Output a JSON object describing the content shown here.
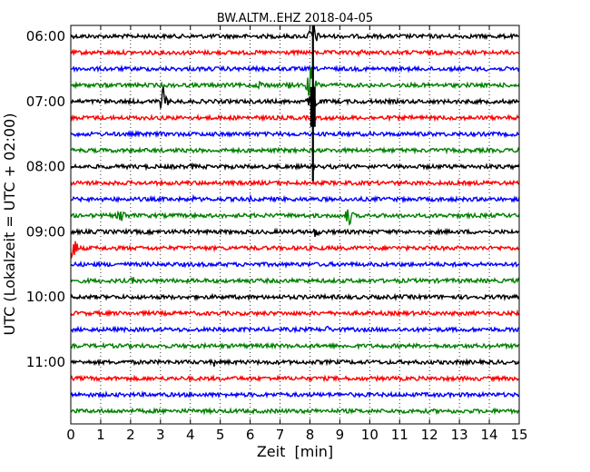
{
  "chart_data": {
    "type": "line",
    "title": "BW.ALTM..EHZ 2018-04-05",
    "xlabel": "Zeit  [min]",
    "ylabel": "UTC (Lokalzeit = UTC + 02:00)",
    "xlim": [
      0,
      15
    ],
    "x_ticks": [
      0,
      1,
      2,
      3,
      4,
      5,
      6,
      7,
      8,
      9,
      10,
      11,
      12,
      13,
      14,
      15
    ],
    "x_tick_labels": [
      "0",
      "1",
      "2",
      "3",
      "4",
      "5",
      "6",
      "7",
      "8",
      "9",
      "10",
      "11",
      "12",
      "13",
      "14",
      "15"
    ],
    "y_tick_labels": [
      {
        "row": 0,
        "label": "06:00"
      },
      {
        "row": 4,
        "label": "07:00"
      },
      {
        "row": 8,
        "label": "08:00"
      },
      {
        "row": 12,
        "label": "09:00"
      },
      {
        "row": 16,
        "label": "10:00"
      },
      {
        "row": 20,
        "label": "11:00"
      }
    ],
    "grid": "vertical dotted at each minute",
    "trace_interval_min": 15,
    "trace_colors": [
      "#000000",
      "#ff0000",
      "#0000ff",
      "#008000"
    ],
    "rows": [
      {
        "start": "06:00",
        "color": "#000000",
        "events": [
          {
            "t": 8.1,
            "amp": 20
          }
        ]
      },
      {
        "start": "06:15",
        "color": "#ff0000",
        "events": [
          {
            "t": 9.7,
            "amp": 6
          }
        ]
      },
      {
        "start": "06:30",
        "color": "#0000ff",
        "events": []
      },
      {
        "start": "06:45",
        "color": "#008000",
        "events": [
          {
            "t": 6.4,
            "amp": 10
          },
          {
            "t": 7.3,
            "amp": 5
          },
          {
            "t": 8.05,
            "amp": 28
          }
        ]
      },
      {
        "start": "07:00",
        "color": "#000000",
        "events": [
          {
            "t": 3.1,
            "amp": 18
          },
          {
            "t": 8.1,
            "amp": 20
          }
        ]
      },
      {
        "start": "07:15",
        "color": "#ff0000",
        "events": []
      },
      {
        "start": "07:30",
        "color": "#0000ff",
        "events": []
      },
      {
        "start": "07:45",
        "color": "#008000",
        "events": []
      },
      {
        "start": "08:00",
        "color": "#000000",
        "events": [
          {
            "t": 4.1,
            "amp": 5
          }
        ]
      },
      {
        "start": "08:15",
        "color": "#ff0000",
        "events": []
      },
      {
        "start": "08:30",
        "color": "#0000ff",
        "events": [
          {
            "t": 4.1,
            "amp": 4
          },
          {
            "t": 6.0,
            "amp": 4
          }
        ]
      },
      {
        "start": "08:45",
        "color": "#008000",
        "events": [
          {
            "t": 1.7,
            "amp": 12
          },
          {
            "t": 9.3,
            "amp": 14
          }
        ]
      },
      {
        "start": "09:00",
        "color": "#000000",
        "events": [
          {
            "t": 8.2,
            "amp": 8
          }
        ]
      },
      {
        "start": "09:15",
        "color": "#ff0000",
        "events": [
          {
            "t": 0.1,
            "amp": 18
          },
          {
            "t": 10.9,
            "amp": 4
          }
        ]
      },
      {
        "start": "09:30",
        "color": "#0000ff",
        "events": []
      },
      {
        "start": "09:45",
        "color": "#008000",
        "events": [
          {
            "t": 2.1,
            "amp": 6
          }
        ]
      },
      {
        "start": "10:00",
        "color": "#000000",
        "events": []
      },
      {
        "start": "10:15",
        "color": "#ff0000",
        "events": []
      },
      {
        "start": "10:30",
        "color": "#0000ff",
        "events": [
          {
            "t": 8.6,
            "amp": 5
          }
        ]
      },
      {
        "start": "10:45",
        "color": "#008000",
        "events": []
      },
      {
        "start": "11:00",
        "color": "#000000",
        "events": [
          {
            "t": 4.8,
            "amp": 5
          }
        ]
      },
      {
        "start": "11:15",
        "color": "#ff0000",
        "events": []
      },
      {
        "start": "11:30",
        "color": "#0000ff",
        "events": []
      },
      {
        "start": "11:45",
        "color": "#008000",
        "events": []
      }
    ]
  }
}
